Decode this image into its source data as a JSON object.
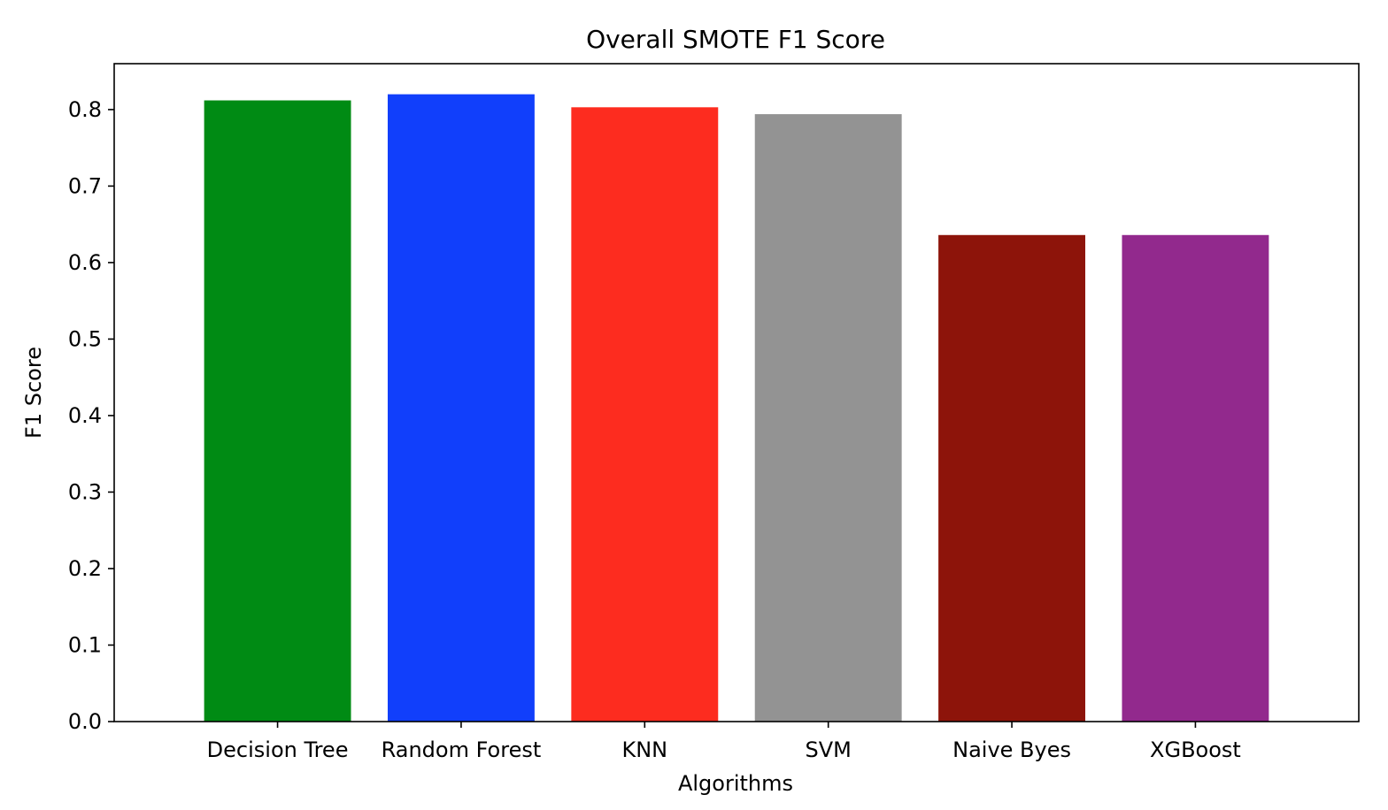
{
  "chart_data": {
    "type": "bar",
    "title": "Overall SMOTE F1 Score",
    "xlabel": "Algorithms",
    "ylabel": "F1 Score",
    "categories": [
      "Decision Tree",
      "Random Forest",
      "KNN",
      "SVM",
      "Naive Byes",
      "XGBoost"
    ],
    "values": [
      0.812,
      0.82,
      0.803,
      0.794,
      0.636,
      0.636
    ],
    "colors": [
      "#008b14",
      "#113ffb",
      "#fd2c1f",
      "#939393",
      "#8d140a",
      "#92298d"
    ],
    "ylim": [
      0,
      0.86
    ],
    "yticks": [
      0.0,
      0.1,
      0.2,
      0.3,
      0.4,
      0.5,
      0.6,
      0.7,
      0.8
    ],
    "ytick_labels": [
      "0.0",
      "0.1",
      "0.2",
      "0.3",
      "0.4",
      "0.5",
      "0.6",
      "0.7",
      "0.8"
    ],
    "grid": false,
    "legend": "none"
  }
}
